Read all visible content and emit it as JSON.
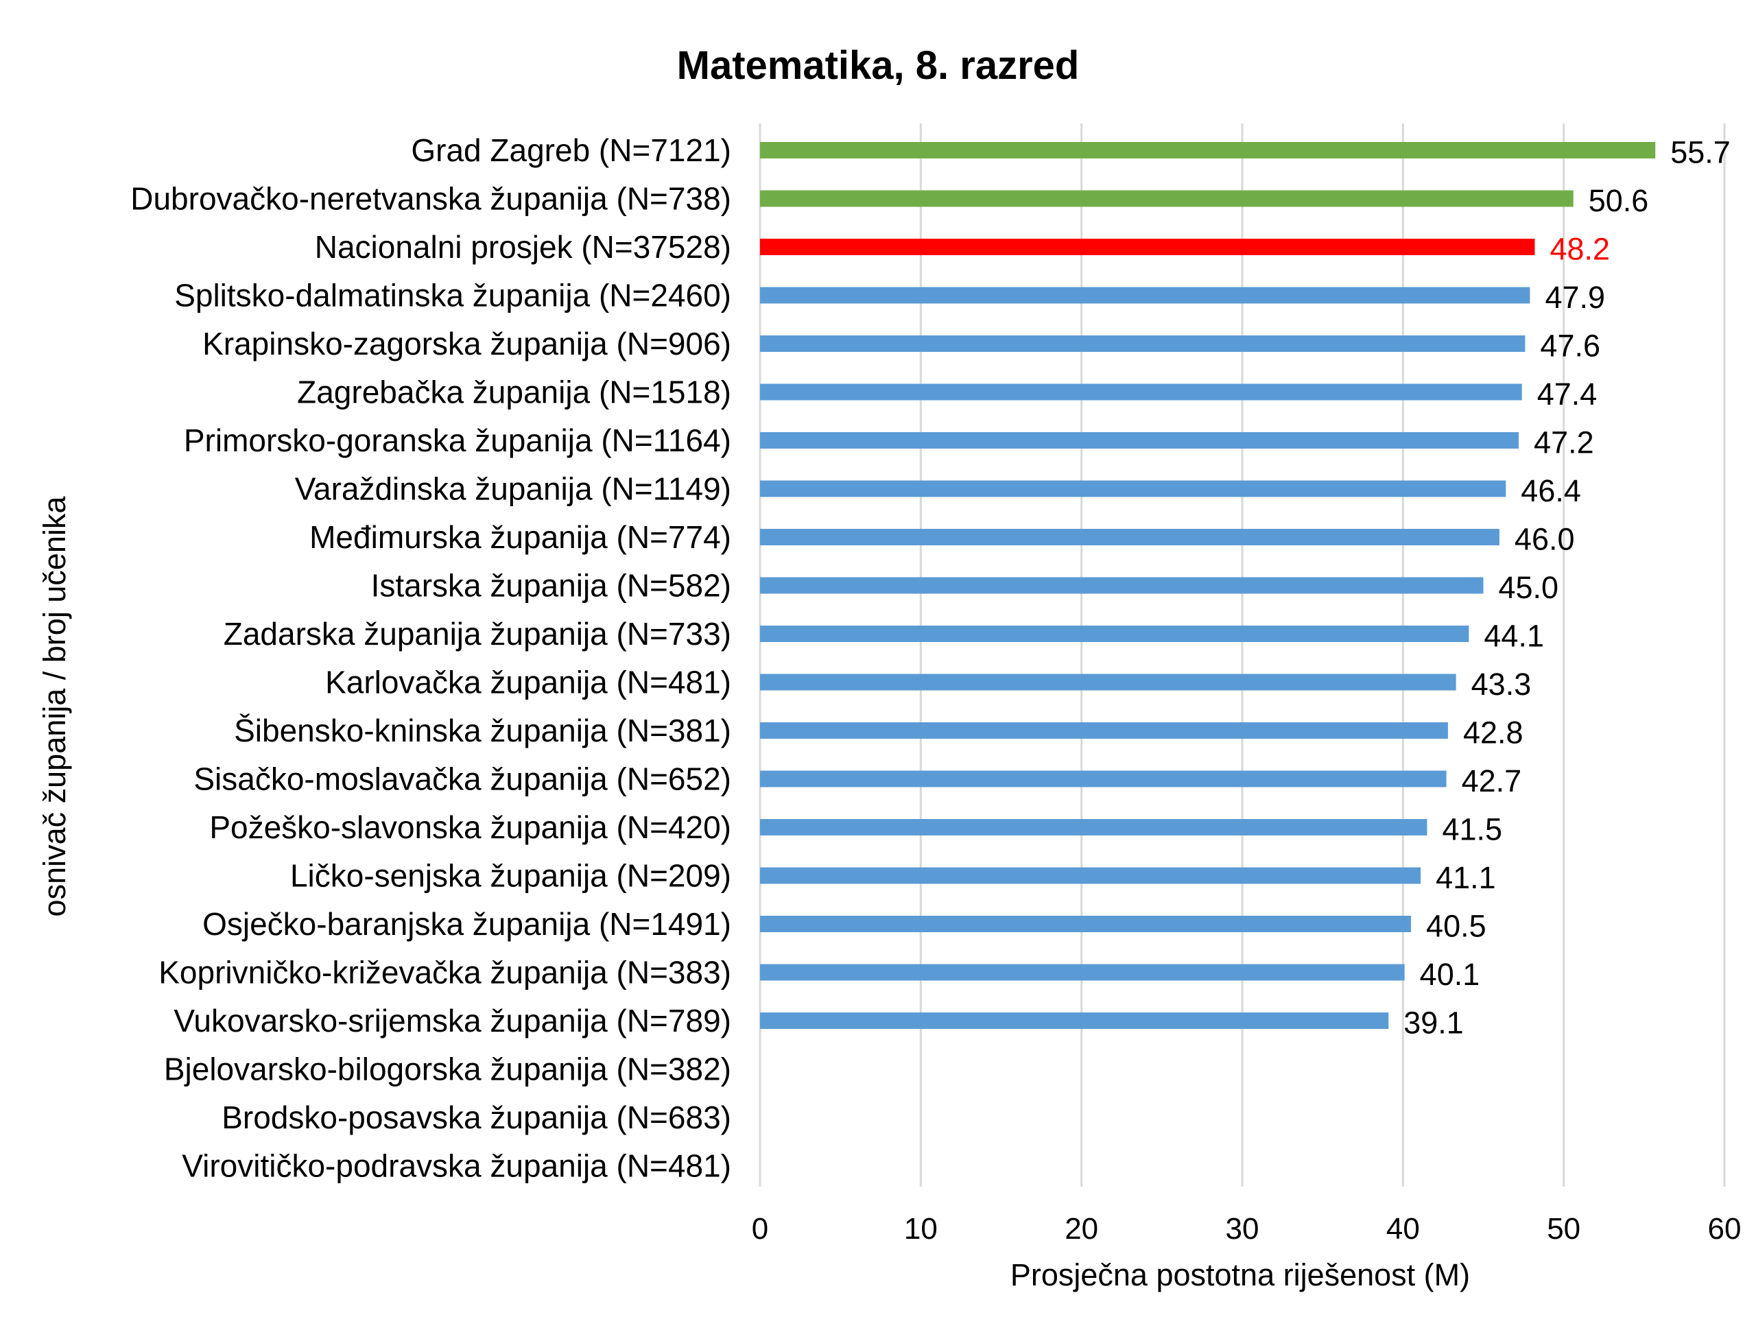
{
  "chart_data": {
    "type": "bar",
    "orientation": "horizontal",
    "title": "Matematika, 8. razred",
    "xlabel": "Prosječna postotna riješenost (M)",
    "ylabel": "osnivač županija / broj učenika",
    "xlim": [
      0,
      60
    ],
    "xticks": [
      0,
      10,
      20,
      30,
      40,
      50,
      60
    ],
    "grid": true,
    "legend": "none",
    "categories": [
      "Grad Zagreb (N=7121)",
      "Dubrovačko-neretvanska županija (N=738)",
      "Nacionalni prosjek (N=37528)",
      "Splitsko-dalmatinska županija (N=2460)",
      "Krapinsko-zagorska županija (N=906)",
      "Zagrebačka županija (N=1518)",
      "Primorsko-goranska županija (N=1164)",
      "Varaždinska županija (N=1149)",
      "Međimurska županija (N=774)",
      "Istarska županija (N=582)",
      "Zadarska županija županija (N=733)",
      "Karlovačka županija (N=481)",
      "Šibensko-kninska županija (N=381)",
      "Sisačko-moslavačka županija (N=652)",
      "Požeško-slavonska županija (N=420)",
      "Ličko-senjska županija (N=209)",
      "Osječko-baranjska županija (N=1491)",
      "Koprivničko-križevačka županija (N=383)",
      "Vukovarsko-srijemska županija (N=789)",
      "Bjelovarsko-bilogorska županija (N=382)",
      "Brodsko-posavska županija (N=683)",
      "Virovitičko-podravska županija (N=481)"
    ],
    "values": [
      55.7,
      50.6,
      48.2,
      47.9,
      47.6,
      47.4,
      47.2,
      46.4,
      46.0,
      45.0,
      44.1,
      43.3,
      42.8,
      42.7,
      41.5,
      41.1,
      40.5,
      40.1,
      39.1,
      null,
      null,
      null
    ],
    "value_labels": [
      "55.7",
      "50.6",
      "48.2",
      "47.9",
      "47.6",
      "47.4",
      "47.2",
      "46.4",
      "46.0",
      "45.0",
      "44.1",
      "43.3",
      "42.8",
      "42.7",
      "41.5",
      "41.1",
      "40.5",
      "40.1",
      "39.1",
      "",
      "",
      ""
    ],
    "bar_colors": [
      "#70ad47",
      "#70ad47",
      "#ff0000",
      "#5b9bd5",
      "#5b9bd5",
      "#5b9bd5",
      "#5b9bd5",
      "#5b9bd5",
      "#5b9bd5",
      "#5b9bd5",
      "#5b9bd5",
      "#5b9bd5",
      "#5b9bd5",
      "#5b9bd5",
      "#5b9bd5",
      "#5b9bd5",
      "#5b9bd5",
      "#5b9bd5",
      "#5b9bd5",
      "#5b9bd5",
      "#5b9bd5",
      "#5b9bd5"
    ],
    "label_colors": [
      "#000000",
      "#000000",
      "#ff0000",
      "#000000",
      "#000000",
      "#000000",
      "#000000",
      "#000000",
      "#000000",
      "#000000",
      "#000000",
      "#000000",
      "#000000",
      "#000000",
      "#000000",
      "#000000",
      "#000000",
      "#000000",
      "#000000",
      "#000000",
      "#000000",
      "#000000"
    ],
    "gridline_color": "#d9d9d9"
  }
}
